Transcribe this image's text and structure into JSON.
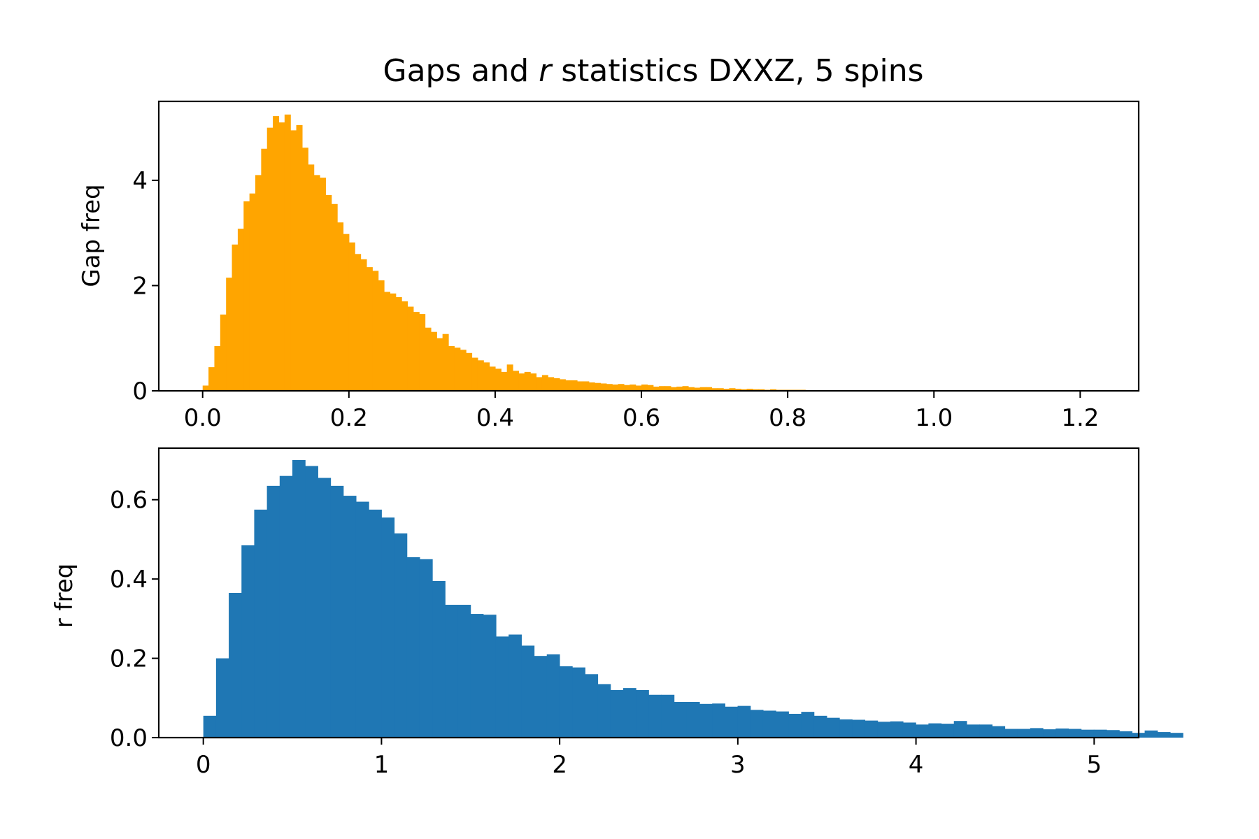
{
  "figure": {
    "title_prefix": "Gaps and ",
    "title_var": "r",
    "title_suffix": " statistics DXXZ, 5 spins"
  },
  "chart_data": [
    {
      "type": "bar",
      "subtype": "histogram",
      "ylabel": "Gap freq",
      "xlabel": "",
      "color": "#ffa500",
      "xlim": [
        -0.06,
        1.28
      ],
      "ylim": [
        0,
        5.5
      ],
      "xticks": [
        0.0,
        0.2,
        0.4,
        0.6,
        0.8,
        1.0,
        1.2
      ],
      "xtick_labels": [
        "0.0",
        "0.2",
        "0.4",
        "0.6",
        "0.8",
        "1.0",
        "1.2"
      ],
      "yticks": [
        0,
        2,
        4
      ],
      "ytick_labels": [
        "0",
        "2",
        "4"
      ],
      "bin_start": 0.0,
      "bin_width": 0.008,
      "values": [
        0.1,
        0.45,
        0.85,
        1.45,
        2.15,
        2.78,
        3.08,
        3.6,
        3.75,
        4.1,
        4.6,
        5.0,
        5.22,
        5.1,
        5.25,
        4.95,
        5.05,
        4.62,
        4.3,
        4.1,
        4.05,
        3.72,
        3.55,
        3.2,
        2.98,
        2.82,
        2.6,
        2.5,
        2.35,
        2.28,
        2.1,
        1.88,
        1.85,
        1.78,
        1.7,
        1.6,
        1.5,
        1.46,
        1.2,
        1.12,
        1.0,
        1.08,
        0.85,
        0.82,
        0.78,
        0.72,
        0.63,
        0.58,
        0.54,
        0.46,
        0.42,
        0.36,
        0.5,
        0.38,
        0.33,
        0.36,
        0.33,
        0.26,
        0.3,
        0.26,
        0.24,
        0.22,
        0.2,
        0.2,
        0.18,
        0.18,
        0.16,
        0.15,
        0.14,
        0.13,
        0.12,
        0.13,
        0.11,
        0.12,
        0.1,
        0.12,
        0.11,
        0.08,
        0.09,
        0.09,
        0.07,
        0.08,
        0.09,
        0.07,
        0.06,
        0.07,
        0.07,
        0.05,
        0.05,
        0.04,
        0.05,
        0.04,
        0.03,
        0.04,
        0.03,
        0.03,
        0.02,
        0.03,
        0.02,
        0.02,
        0.02,
        0.02,
        0.02,
        0.01,
        0.01,
        0.01,
        0.01,
        0.01,
        0.01,
        0.01,
        0.01,
        0.0,
        0.01,
        0.0,
        0.01,
        0.0,
        0.0,
        0.0,
        0.01,
        0.0,
        0.0,
        0.0
      ]
    },
    {
      "type": "bar",
      "subtype": "histogram",
      "ylabel": "r freq",
      "xlabel": "",
      "color": "#1f77b4",
      "xlim": [
        -0.25,
        5.25
      ],
      "ylim": [
        0,
        0.73
      ],
      "xticks": [
        0,
        1,
        2,
        3,
        4,
        5
      ],
      "xtick_labels": [
        "0",
        "1",
        "2",
        "3",
        "4",
        "5"
      ],
      "yticks": [
        0.0,
        0.2,
        0.4,
        0.6
      ],
      "ytick_labels": [
        "0.0",
        "0.2",
        "0.4",
        "0.6"
      ],
      "bin_start": 0.0,
      "bin_width": 0.0714,
      "values": [
        0.055,
        0.2,
        0.365,
        0.485,
        0.575,
        0.635,
        0.66,
        0.7,
        0.685,
        0.655,
        0.635,
        0.61,
        0.595,
        0.575,
        0.555,
        0.515,
        0.455,
        0.45,
        0.395,
        0.335,
        0.335,
        0.312,
        0.31,
        0.255,
        0.26,
        0.232,
        0.206,
        0.21,
        0.18,
        0.177,
        0.16,
        0.135,
        0.12,
        0.125,
        0.12,
        0.108,
        0.108,
        0.09,
        0.09,
        0.085,
        0.086,
        0.078,
        0.08,
        0.07,
        0.068,
        0.066,
        0.06,
        0.065,
        0.055,
        0.05,
        0.046,
        0.045,
        0.043,
        0.04,
        0.041,
        0.038,
        0.033,
        0.036,
        0.035,
        0.042,
        0.033,
        0.033,
        0.029,
        0.022,
        0.022,
        0.024,
        0.021,
        0.023,
        0.022,
        0.02,
        0.02,
        0.019,
        0.016,
        0.012,
        0.018,
        0.014,
        0.012,
        0.0
      ]
    }
  ]
}
